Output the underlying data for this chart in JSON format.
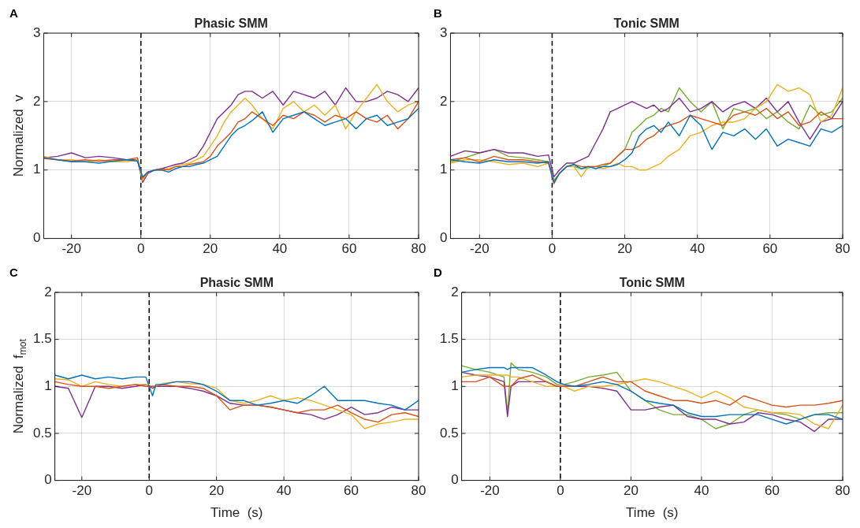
{
  "chart_data": [
    {
      "type": "line",
      "title": "Phasic SMM",
      "ylabel": "Normalized  v",
      "annotations": [
        "A"
      ],
      "grid": true,
      "marker": "none",
      "xlim": [
        -28,
        80
      ],
      "xticks": [
        -20,
        0,
        20,
        40,
        60,
        80
      ],
      "ylim": [
        0,
        3
      ],
      "yticks": [
        0,
        1,
        2,
        3
      ],
      "ref_lines": [
        {
          "axis": "x",
          "value": 0,
          "color": "#000000",
          "line_style": "dashed"
        }
      ],
      "x": [
        -28,
        -24,
        -20,
        -16,
        -12,
        -8,
        -4,
        -1,
        0.5,
        2,
        4,
        6,
        8,
        10,
        12,
        14,
        16,
        18,
        20,
        22,
        24,
        26,
        28,
        30,
        32,
        35,
        38,
        41,
        44,
        47,
        50,
        53,
        56,
        59,
        62,
        65,
        68,
        71,
        74,
        77,
        80
      ],
      "series": [
        {
          "color": "#0072bd",
          "values": [
            1.18,
            1.15,
            1.12,
            1.12,
            1.1,
            1.13,
            1.15,
            1.13,
            0.9,
            0.97,
            1.0,
            1.0,
            0.97,
            1.02,
            1.05,
            1.05,
            1.08,
            1.1,
            1.15,
            1.2,
            1.35,
            1.5,
            1.6,
            1.65,
            1.72,
            1.85,
            1.55,
            1.75,
            1.8,
            1.85,
            1.75,
            1.65,
            1.7,
            1.75,
            1.6,
            1.75,
            1.8,
            1.65,
            1.7,
            1.75,
            1.9
          ]
        },
        {
          "color": "#d95319",
          "values": [
            1.17,
            1.15,
            1.13,
            1.15,
            1.13,
            1.15,
            1.15,
            1.18,
            0.88,
            0.97,
            1.0,
            1.02,
            1.0,
            1.05,
            1.05,
            1.08,
            1.1,
            1.12,
            1.2,
            1.35,
            1.45,
            1.55,
            1.7,
            1.75,
            1.85,
            1.75,
            1.65,
            1.8,
            1.75,
            1.85,
            1.8,
            1.7,
            1.8,
            1.75,
            1.85,
            1.75,
            1.7,
            1.8,
            1.6,
            1.75,
            2.0
          ]
        },
        {
          "color": "#edb120",
          "values": [
            1.2,
            1.15,
            1.15,
            1.12,
            1.15,
            1.12,
            1.12,
            1.15,
            0.85,
            0.97,
            1.0,
            1.0,
            1.02,
            1.05,
            1.08,
            1.1,
            1.15,
            1.2,
            1.35,
            1.5,
            1.7,
            1.85,
            1.95,
            2.05,
            1.95,
            1.75,
            1.6,
            1.9,
            2.0,
            1.85,
            1.95,
            1.8,
            1.95,
            1.6,
            1.85,
            2.05,
            2.25,
            2.0,
            1.85,
            1.95,
            2.0
          ]
        },
        {
          "color": "#7e2f8e",
          "values": [
            1.18,
            1.2,
            1.25,
            1.18,
            1.2,
            1.18,
            1.15,
            1.15,
            0.82,
            0.95,
            1.0,
            1.02,
            1.05,
            1.08,
            1.1,
            1.15,
            1.2,
            1.35,
            1.55,
            1.75,
            1.85,
            1.95,
            2.1,
            2.15,
            2.15,
            2.05,
            2.15,
            1.95,
            2.15,
            2.1,
            2.05,
            2.15,
            1.95,
            2.2,
            2.0,
            2.0,
            2.05,
            2.15,
            2.1,
            2.0,
            2.2
          ]
        }
      ]
    },
    {
      "type": "line",
      "title": "Tonic SMM",
      "annotations": [
        "B"
      ],
      "grid": true,
      "marker": "none",
      "xlim": [
        -28,
        80
      ],
      "xticks": [
        -20,
        0,
        20,
        40,
        60,
        80
      ],
      "ylim": [
        0,
        3
      ],
      "yticks": [
        0,
        1,
        2,
        3
      ],
      "ref_lines": [
        {
          "axis": "x",
          "value": 0,
          "color": "#000000",
          "line_style": "dashed"
        }
      ],
      "x": [
        -28,
        -24,
        -20,
        -16,
        -12,
        -8,
        -4,
        -1,
        0.5,
        2,
        4,
        6,
        8,
        10,
        12,
        14,
        16,
        18,
        20,
        22,
        24,
        26,
        28,
        30,
        32,
        35,
        38,
        41,
        44,
        47,
        50,
        53,
        56,
        59,
        62,
        65,
        68,
        71,
        74,
        77,
        80
      ],
      "series": [
        {
          "color": "#0072bd",
          "values": [
            1.15,
            1.12,
            1.1,
            1.15,
            1.12,
            1.12,
            1.1,
            1.12,
            0.82,
            0.95,
            1.05,
            1.08,
            1.02,
            1.05,
            1.02,
            1.05,
            1.05,
            1.08,
            1.15,
            1.25,
            1.5,
            1.6,
            1.65,
            1.55,
            1.7,
            1.5,
            1.8,
            1.65,
            1.3,
            1.55,
            1.5,
            1.6,
            1.45,
            1.6,
            1.35,
            1.45,
            1.4,
            1.35,
            1.6,
            1.55,
            1.65
          ]
        },
        {
          "color": "#d95319",
          "values": [
            1.15,
            1.18,
            1.12,
            1.2,
            1.15,
            1.15,
            1.12,
            1.1,
            0.8,
            0.95,
            1.05,
            1.08,
            1.05,
            1.05,
            1.05,
            1.08,
            1.1,
            1.2,
            1.3,
            1.3,
            1.35,
            1.45,
            1.5,
            1.6,
            1.65,
            1.7,
            1.8,
            1.75,
            1.7,
            1.65,
            1.8,
            1.85,
            1.8,
            1.9,
            1.75,
            1.85,
            1.65,
            1.7,
            1.85,
            1.75,
            1.75
          ]
        },
        {
          "color": "#edb120",
          "values": [
            1.1,
            1.15,
            1.15,
            1.12,
            1.08,
            1.1,
            1.05,
            1.1,
            0.82,
            0.95,
            1.05,
            1.05,
            0.9,
            1.05,
            1.05,
            1.02,
            1.05,
            1.1,
            1.05,
            1.05,
            1.0,
            1.0,
            1.05,
            1.1,
            1.2,
            1.3,
            1.5,
            1.55,
            1.65,
            1.7,
            1.7,
            1.75,
            1.9,
            2.0,
            2.25,
            2.15,
            2.2,
            2.1,
            1.7,
            1.8,
            2.2
          ]
        },
        {
          "color": "#7e2f8e",
          "values": [
            1.2,
            1.28,
            1.25,
            1.3,
            1.25,
            1.25,
            1.2,
            1.22,
            0.9,
            1.0,
            1.1,
            1.1,
            1.15,
            1.2,
            1.4,
            1.6,
            1.85,
            1.9,
            1.95,
            2.0,
            1.95,
            1.9,
            1.95,
            1.85,
            1.9,
            2.05,
            1.85,
            1.9,
            2.0,
            1.85,
            1.95,
            2.0,
            1.9,
            2.05,
            1.85,
            2.0,
            1.7,
            1.45,
            1.7,
            1.75,
            2.0
          ]
        },
        {
          "color": "#77ac30",
          "values": [
            1.12,
            1.18,
            1.25,
            1.3,
            1.2,
            1.18,
            1.15,
            1.12,
            0.85,
            0.95,
            1.05,
            1.05,
            1.02,
            1.03,
            1.05,
            1.05,
            1.1,
            1.2,
            1.3,
            1.55,
            1.65,
            1.75,
            1.8,
            1.9,
            1.85,
            2.2,
            2.0,
            1.85,
            2.0,
            1.6,
            1.9,
            1.85,
            1.9,
            1.75,
            1.85,
            1.7,
            1.6,
            1.95,
            1.8,
            1.85,
            2.05
          ]
        }
      ]
    },
    {
      "type": "line",
      "title": "Phasic SMM",
      "xlabel": "Time  (s)",
      "ylabel": "Normalized  f$_{mot}$",
      "annotations": [
        "C"
      ],
      "grid": true,
      "marker": "none",
      "xlim": [
        -28,
        80
      ],
      "xticks": [
        -20,
        0,
        20,
        40,
        60,
        80
      ],
      "ylim": [
        0,
        2
      ],
      "yticks": [
        0,
        0.5,
        1,
        1.5,
        2
      ],
      "ref_lines": [
        {
          "axis": "x",
          "value": 0,
          "color": "#000000",
          "line_style": "dashed"
        }
      ],
      "x": [
        -28,
        -24,
        -20,
        -16,
        -12,
        -8,
        -4,
        -1,
        1,
        2,
        4,
        8,
        12,
        16,
        20,
        24,
        28,
        32,
        36,
        40,
        44,
        48,
        52,
        56,
        60,
        64,
        68,
        72,
        76,
        80
      ],
      "series": [
        {
          "color": "#0072bd",
          "values": [
            1.12,
            1.08,
            1.12,
            1.08,
            1.1,
            1.08,
            1.1,
            1.1,
            0.9,
            1.02,
            1.02,
            1.05,
            1.05,
            1.02,
            0.95,
            0.85,
            0.85,
            0.8,
            0.82,
            0.85,
            0.82,
            0.9,
            1.0,
            0.85,
            0.85,
            0.85,
            0.82,
            0.8,
            0.75,
            0.85
          ]
        },
        {
          "color": "#d95319",
          "values": [
            1.05,
            1.02,
            1.0,
            1.0,
            0.98,
            1.0,
            1.02,
            1.0,
            1.0,
            1.0,
            1.02,
            1.0,
            1.0,
            0.98,
            0.9,
            0.75,
            0.8,
            0.8,
            0.78,
            0.75,
            0.72,
            0.75,
            0.75,
            0.8,
            0.72,
            0.65,
            0.62,
            0.7,
            0.72,
            0.68
          ]
        },
        {
          "color": "#edb120",
          "values": [
            1.08,
            1.07,
            1.0,
            1.05,
            1.02,
            1.0,
            1.02,
            1.02,
            1.0,
            1.0,
            1.03,
            1.05,
            1.03,
            1.02,
            0.98,
            0.85,
            0.82,
            0.85,
            0.9,
            0.85,
            0.88,
            0.85,
            0.8,
            0.75,
            0.7,
            0.55,
            0.6,
            0.62,
            0.65,
            0.65
          ]
        },
        {
          "color": "#7e2f8e",
          "values": [
            1.0,
            0.98,
            0.67,
            1.0,
            1.0,
            0.98,
            1.0,
            1.02,
            0.98,
            1.0,
            1.0,
            1.0,
            0.98,
            0.95,
            0.9,
            0.82,
            0.8,
            0.8,
            0.78,
            0.75,
            0.72,
            0.7,
            0.65,
            0.7,
            0.78,
            0.7,
            0.72,
            0.78,
            0.75,
            0.75
          ]
        }
      ]
    },
    {
      "type": "line",
      "title": "Tonic SMM",
      "xlabel": "Time  (s)",
      "annotations": [
        "D"
      ],
      "grid": true,
      "marker": "none",
      "xlim": [
        -28,
        80
      ],
      "xticks": [
        -20,
        0,
        20,
        40,
        60,
        80
      ],
      "ylim": [
        0,
        2
      ],
      "yticks": [
        0,
        0.5,
        1,
        1.5,
        2
      ],
      "ref_lines": [
        {
          "axis": "x",
          "value": 0,
          "color": "#000000",
          "line_style": "dashed"
        }
      ],
      "x": [
        -28,
        -24,
        -20,
        -16,
        -15,
        -14,
        -12,
        -8,
        -4,
        -1,
        1,
        4,
        8,
        12,
        16,
        20,
        24,
        28,
        32,
        36,
        40,
        44,
        48,
        52,
        56,
        60,
        64,
        68,
        72,
        76,
        80
      ],
      "series": [
        {
          "color": "#0072bd",
          "values": [
            1.15,
            1.18,
            1.2,
            1.2,
            1.18,
            1.2,
            1.2,
            1.2,
            1.12,
            1.05,
            1.02,
            1.0,
            1.02,
            1.05,
            1.02,
            0.95,
            0.85,
            0.82,
            0.8,
            0.72,
            0.68,
            0.68,
            0.7,
            0.7,
            0.7,
            0.65,
            0.6,
            0.65,
            0.7,
            0.7,
            0.65
          ]
        },
        {
          "color": "#d95319",
          "values": [
            1.05,
            1.05,
            1.1,
            1.0,
            1.0,
            1.0,
            1.08,
            1.12,
            1.05,
            1.0,
            1.0,
            1.0,
            1.05,
            1.1,
            1.05,
            1.05,
            0.95,
            0.9,
            0.85,
            0.85,
            0.82,
            0.85,
            0.8,
            0.9,
            0.85,
            0.8,
            0.78,
            0.8,
            0.8,
            0.82,
            0.85
          ]
        },
        {
          "color": "#edb120",
          "values": [
            1.1,
            1.12,
            1.12,
            1.12,
            1.12,
            1.1,
            1.1,
            1.05,
            1.0,
            1.0,
            1.0,
            0.95,
            1.0,
            1.0,
            1.02,
            1.05,
            1.08,
            1.05,
            1.0,
            0.95,
            0.88,
            0.95,
            0.88,
            0.78,
            0.75,
            0.72,
            0.72,
            0.7,
            0.6,
            0.55,
            0.8
          ]
        },
        {
          "color": "#7e2f8e",
          "values": [
            1.15,
            1.12,
            1.1,
            1.05,
            0.68,
            1.0,
            1.05,
            1.05,
            1.05,
            1.0,
            1.0,
            1.0,
            1.0,
            0.98,
            0.95,
            0.75,
            0.75,
            0.78,
            0.8,
            0.68,
            0.65,
            0.65,
            0.6,
            0.62,
            0.72,
            0.7,
            0.65,
            0.62,
            0.52,
            0.65,
            0.65
          ]
        },
        {
          "color": "#77ac30",
          "values": [
            1.22,
            1.18,
            1.15,
            1.1,
            0.72,
            1.25,
            1.18,
            1.15,
            1.1,
            1.02,
            1.02,
            1.05,
            1.1,
            1.12,
            1.15,
            0.95,
            0.85,
            0.75,
            0.7,
            0.7,
            0.65,
            0.55,
            0.6,
            0.7,
            0.75,
            0.72,
            0.7,
            0.65,
            0.7,
            0.72,
            0.72
          ]
        }
      ]
    }
  ]
}
